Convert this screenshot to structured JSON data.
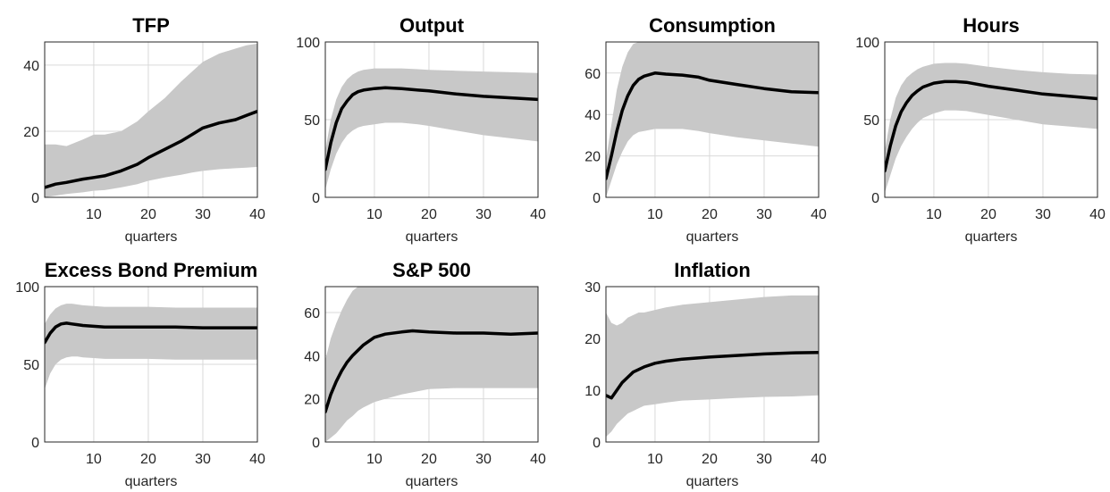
{
  "chart_data": [
    {
      "type": "area",
      "title": "TFP",
      "xlabel": "quarters",
      "xlim": [
        1,
        40
      ],
      "ylim": [
        0,
        47
      ],
      "xticks": [
        10,
        20,
        30,
        40
      ],
      "yticks": [
        0,
        20,
        40
      ],
      "grid": true,
      "x": [
        1,
        3,
        5,
        8,
        10,
        12,
        15,
        18,
        20,
        23,
        26,
        28,
        30,
        33,
        36,
        38,
        40
      ],
      "series": [
        {
          "role": "median",
          "values": [
            3,
            4,
            4.5,
            5.5,
            6,
            6.5,
            8,
            10,
            12,
            14.5,
            17,
            19,
            21,
            22.5,
            23.5,
            24.8,
            26
          ]
        },
        {
          "role": "upper",
          "values": [
            16,
            16,
            15.5,
            17.5,
            19,
            19,
            20,
            23,
            26,
            30,
            35,
            38,
            41,
            43.5,
            45,
            46,
            46.5
          ]
        },
        {
          "role": "lower",
          "values": [
            0,
            0.5,
            1,
            1.5,
            2,
            2.2,
            3,
            4,
            5,
            6,
            6.8,
            7.5,
            8,
            8.5,
            8.8,
            9,
            9.2
          ]
        }
      ]
    },
    {
      "type": "area",
      "title": "Output",
      "xlabel": "quarters",
      "xlim": [
        1,
        40
      ],
      "ylim": [
        0,
        100
      ],
      "xticks": [
        10,
        20,
        30,
        40
      ],
      "yticks": [
        0,
        50,
        100
      ],
      "grid": true,
      "x": [
        1,
        2,
        3,
        4,
        5,
        6,
        7,
        8,
        10,
        12,
        15,
        18,
        20,
        25,
        30,
        35,
        40
      ],
      "series": [
        {
          "role": "median",
          "values": [
            18,
            35,
            48,
            57,
            62,
            66,
            68,
            69,
            70,
            70.5,
            70,
            69,
            68.5,
            66.5,
            65,
            64,
            63
          ]
        },
        {
          "role": "upper",
          "values": [
            30,
            50,
            63,
            71,
            76,
            79,
            81,
            82,
            83,
            83,
            83,
            82.5,
            82,
            81.5,
            81,
            80.5,
            80
          ]
        },
        {
          "role": "lower",
          "values": [
            5,
            18,
            28,
            35,
            40,
            43,
            45,
            46,
            47,
            48,
            48,
            47,
            46,
            43,
            40,
            38,
            36
          ]
        }
      ]
    },
    {
      "type": "area",
      "title": "Consumption",
      "xlabel": "quarters",
      "xlim": [
        1,
        40
      ],
      "ylim": [
        0,
        75
      ],
      "xticks": [
        10,
        20,
        30,
        40
      ],
      "yticks": [
        0,
        20,
        40,
        60
      ],
      "grid": true,
      "x": [
        1,
        2,
        3,
        4,
        5,
        6,
        7,
        8,
        10,
        12,
        15,
        18,
        20,
        25,
        30,
        35,
        40
      ],
      "series": [
        {
          "role": "median",
          "values": [
            9,
            20,
            32,
            42,
            49,
            54,
            57,
            58.5,
            60,
            59.5,
            59,
            58,
            56.5,
            54.5,
            52.5,
            51,
            50.5
          ]
        },
        {
          "role": "upper",
          "values": [
            18,
            35,
            52,
            63,
            70,
            74,
            75,
            75,
            75,
            75,
            75,
            75,
            75,
            75,
            75,
            75,
            75
          ]
        },
        {
          "role": "lower",
          "values": [
            0,
            8,
            16,
            22,
            27,
            30,
            31.5,
            32,
            33,
            33,
            33,
            32,
            31,
            29,
            27.5,
            26,
            24.5
          ]
        }
      ]
    },
    {
      "type": "area",
      "title": "Hours",
      "xlabel": "quarters",
      "xlim": [
        1,
        40
      ],
      "ylim": [
        0,
        100
      ],
      "xticks": [
        10,
        20,
        30,
        40
      ],
      "yticks": [
        0,
        50,
        100
      ],
      "grid": true,
      "x": [
        1,
        2,
        3,
        4,
        5,
        6,
        7,
        8,
        10,
        12,
        14,
        16,
        20,
        25,
        30,
        35,
        40
      ],
      "series": [
        {
          "role": "median",
          "values": [
            17,
            33,
            46,
            55,
            61,
            65.5,
            68.5,
            71,
            73.5,
            74.5,
            74.5,
            74,
            71.5,
            69,
            66.5,
            65,
            63.5
          ]
        },
        {
          "role": "upper",
          "values": [
            30,
            50,
            64,
            72,
            77,
            80,
            82.5,
            84,
            86,
            86.5,
            86.5,
            86,
            84,
            82,
            80.5,
            79.5,
            79
          ]
        },
        {
          "role": "lower",
          "values": [
            3,
            14,
            25,
            33,
            39,
            44,
            48,
            51,
            54,
            56,
            56,
            55.5,
            53,
            50,
            47,
            45.5,
            44
          ]
        }
      ]
    },
    {
      "type": "area",
      "title": "Excess Bond Premium",
      "xlabel": "quarters",
      "xlim": [
        1,
        40
      ],
      "ylim": [
        0,
        100
      ],
      "xticks": [
        10,
        20,
        30,
        40
      ],
      "yticks": [
        0,
        50,
        100
      ],
      "grid": true,
      "x": [
        1,
        2,
        3,
        4,
        5,
        6,
        7,
        8,
        10,
        12,
        15,
        20,
        25,
        30,
        35,
        40
      ],
      "series": [
        {
          "role": "median",
          "values": [
            64,
            70,
            74,
            76,
            76.5,
            76,
            75.5,
            75,
            74.5,
            74,
            74,
            74,
            74,
            73.5,
            73.5,
            73.5
          ]
        },
        {
          "role": "upper",
          "values": [
            76,
            82,
            86,
            88,
            89,
            89,
            88.5,
            88,
            87.5,
            87,
            87,
            87,
            86.5,
            86.5,
            86.5,
            86.5
          ]
        },
        {
          "role": "lower",
          "values": [
            34,
            44,
            50,
            53,
            54.5,
            55,
            55,
            54.5,
            54,
            53.5,
            53.5,
            53.5,
            53,
            53,
            53,
            53
          ]
        }
      ]
    },
    {
      "type": "area",
      "title": "S&P 500",
      "xlabel": "quarters",
      "xlim": [
        1,
        40
      ],
      "ylim": [
        0,
        72
      ],
      "xticks": [
        10,
        20,
        30,
        40
      ],
      "yticks": [
        0,
        20,
        40,
        60
      ],
      "grid": true,
      "x": [
        1,
        2,
        3,
        4,
        5,
        6,
        7,
        8,
        10,
        12,
        15,
        17,
        20,
        25,
        30,
        35,
        40
      ],
      "series": [
        {
          "role": "median",
          "values": [
            14,
            22,
            28,
            33,
            37,
            40,
            42.5,
            45,
            48.5,
            50,
            51,
            51.5,
            51,
            50.5,
            50.5,
            50,
            50.5
          ]
        },
        {
          "role": "upper",
          "values": [
            38,
            48,
            55,
            61,
            66,
            70,
            72,
            72,
            72,
            72,
            72,
            72,
            72,
            72,
            72,
            72,
            72
          ]
        },
        {
          "role": "lower",
          "values": [
            0,
            2,
            4,
            7,
            10,
            12,
            14.5,
            16,
            18.5,
            20,
            22,
            23,
            24.5,
            25,
            25,
            25,
            25
          ]
        }
      ]
    },
    {
      "type": "area",
      "title": "Inflation",
      "xlabel": "quarters",
      "xlim": [
        1,
        40
      ],
      "ylim": [
        0,
        30
      ],
      "xticks": [
        10,
        20,
        30,
        40
      ],
      "yticks": [
        0,
        10,
        20,
        30
      ],
      "grid": true,
      "x": [
        1,
        2,
        3,
        4,
        5,
        6,
        7,
        8,
        10,
        12,
        15,
        20,
        25,
        30,
        35,
        40
      ],
      "series": [
        {
          "role": "median",
          "values": [
            9,
            8.5,
            10,
            11.5,
            12.5,
            13.5,
            14,
            14.5,
            15.2,
            15.6,
            16,
            16.4,
            16.7,
            17,
            17.2,
            17.3
          ]
        },
        {
          "role": "upper",
          "values": [
            25,
            23,
            22.5,
            23,
            24,
            24.5,
            25,
            25,
            25.5,
            26,
            26.5,
            27,
            27.5,
            28,
            28.3,
            28.3
          ]
        },
        {
          "role": "lower",
          "values": [
            1,
            2,
            3.5,
            4.5,
            5.5,
            6,
            6.5,
            7,
            7.3,
            7.6,
            8,
            8.2,
            8.5,
            8.7,
            8.8,
            9
          ]
        }
      ]
    }
  ]
}
